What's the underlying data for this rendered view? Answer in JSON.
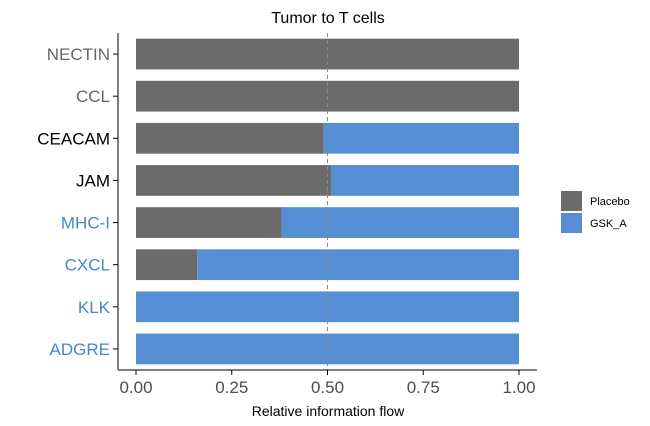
{
  "chart_data": {
    "type": "bar",
    "orientation": "horizontal",
    "stacked": true,
    "title": "Tumor to T cells",
    "xlabel": "Relative information flow",
    "ylabel": "",
    "xlim": [
      0,
      1
    ],
    "xticks": [
      "0.00",
      "0.25",
      "0.50",
      "0.75",
      "1.00"
    ],
    "reference_line": 0.5,
    "grid": false,
    "legend_position": "right",
    "categories": [
      "NECTIN",
      "CCL",
      "CEACAM",
      "JAM",
      "MHC-I",
      "CXCL",
      "KLK",
      "ADGRE"
    ],
    "category_colors": [
      "#666666",
      "#666666",
      "#000000",
      "#000000",
      "#4a86c8",
      "#4a86c8",
      "#4a86c8",
      "#4a86c8"
    ],
    "series": [
      {
        "name": "Placebo",
        "color": "#6b6b6b",
        "values": [
          1.0,
          1.0,
          0.49,
          0.51,
          0.38,
          0.16,
          0.0,
          0.0
        ]
      },
      {
        "name": "GSK_A",
        "color": "#558ed5",
        "values": [
          0.0,
          0.0,
          0.51,
          0.49,
          0.62,
          0.84,
          1.0,
          1.0
        ]
      }
    ]
  }
}
